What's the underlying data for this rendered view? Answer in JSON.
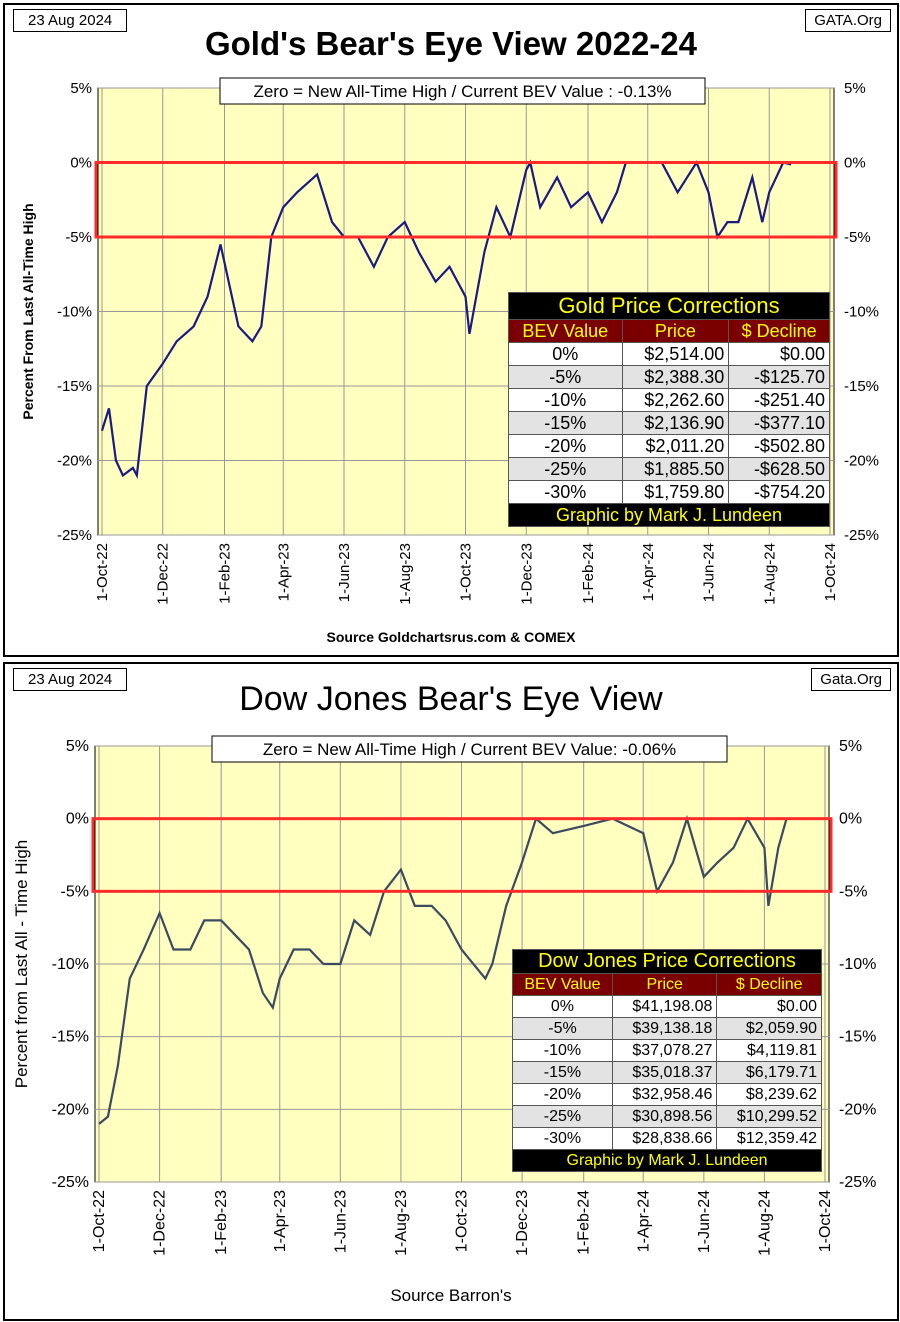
{
  "charts": [
    {
      "date": "23 Aug 2024",
      "site": "GATA.Org",
      "title": "Gold's Bear's Eye View 2022-24",
      "note": "Zero = New All-Time High / Current  BEV Value : -0.13%",
      "ylabel": "Percent  From  Last  All-Time High",
      "source": "Source Goldchartsrus.com  & COMEX",
      "table": {
        "title": "Gold Price Corrections",
        "headers": [
          "BEV Value",
          "Price",
          "$ Decline"
        ],
        "rows": [
          [
            "0%",
            "$2,514.00",
            "$0.00"
          ],
          [
            "-5%",
            "$2,388.30",
            "-$125.70"
          ],
          [
            "-10%",
            "$2,262.60",
            "-$251.40"
          ],
          [
            "-15%",
            "$2,136.90",
            "-$377.10"
          ],
          [
            "-20%",
            "$2,011.20",
            "-$502.80"
          ],
          [
            "-25%",
            "$1,885.50",
            "-$628.50"
          ],
          [
            "-30%",
            "$1,759.80",
            "-$754.20"
          ]
        ],
        "footer": "Graphic by Mark J. Lundeen"
      }
    },
    {
      "date": "23 Aug 2024",
      "site": "Gata.Org",
      "title": "Dow Jones Bear's Eye View",
      "note": "Zero = New All-Time High / Current BEV Value:  -0.06%",
      "ylabel": "Percent from Last All - Time  High",
      "source": "Source Barron's",
      "table": {
        "title": "Dow Jones Price Corrections",
        "headers": [
          "BEV Value",
          "Price",
          "$ Decline"
        ],
        "rows": [
          [
            "0%",
            "$41,198.08",
            "$0.00"
          ],
          [
            "-5%",
            "$39,138.18",
            "$2,059.90"
          ],
          [
            "-10%",
            "$37,078.27",
            "$4,119.81"
          ],
          [
            "-15%",
            "$35,018.37",
            "$6,179.71"
          ],
          [
            "-20%",
            "$32,958.46",
            "$8,239.62"
          ],
          [
            "-25%",
            "$30,898.56",
            "$10,299.52"
          ],
          [
            "-30%",
            "$28,838.66",
            "$12,359.42"
          ]
        ],
        "footer": "Graphic by Mark J. Lundeen"
      }
    }
  ],
  "chart_data": [
    {
      "type": "line",
      "title": "Gold's Bear's Eye View 2022-24",
      "ylabel": "Percent  From  Last  All-Time High",
      "ylim": [
        -25,
        5
      ],
      "yticks": [
        "5%",
        "0%",
        "-5%",
        "-10%",
        "-15%",
        "-20%",
        "-25%"
      ],
      "xticks": [
        "1-Oct-22",
        "1-Dec-22",
        "1-Feb-23",
        "1-Apr-23",
        "1-Jun-23",
        "1-Aug-23",
        "1-Oct-23",
        "1-Dec-23",
        "1-Feb-24",
        "1-Apr-24",
        "1-Jun-24",
        "1-Aug-24",
        "1-Oct-24"
      ],
      "highlight_band": [
        -5,
        0
      ],
      "line_color": "#1a1a80",
      "plot_bg": "#ffffc0",
      "x": [
        "2022-10-01",
        "2022-10-08",
        "2022-10-15",
        "2022-10-22",
        "2022-11-01",
        "2022-11-05",
        "2022-11-15",
        "2022-12-01",
        "2022-12-15",
        "2023-01-01",
        "2023-01-15",
        "2023-01-28",
        "2023-02-15",
        "2023-03-01",
        "2023-03-10",
        "2023-03-20",
        "2023-04-01",
        "2023-04-15",
        "2023-05-05",
        "2023-05-20",
        "2023-06-01",
        "2023-06-15",
        "2023-07-01",
        "2023-07-15",
        "2023-08-01",
        "2023-08-15",
        "2023-09-01",
        "2023-09-15",
        "2023-10-01",
        "2023-10-05",
        "2023-10-20",
        "2023-11-01",
        "2023-11-15",
        "2023-12-01",
        "2023-12-05",
        "2023-12-15",
        "2024-01-01",
        "2024-01-15",
        "2024-02-01",
        "2024-02-15",
        "2024-03-01",
        "2024-03-10",
        "2024-04-01",
        "2024-04-15",
        "2024-05-01",
        "2024-05-20",
        "2024-06-01",
        "2024-06-10",
        "2024-06-20",
        "2024-07-01",
        "2024-07-15",
        "2024-07-25",
        "2024-08-01",
        "2024-08-15",
        "2024-08-23"
      ],
      "y": [
        -18,
        -16.5,
        -20,
        -21,
        -20.5,
        -21,
        -15,
        -13.5,
        -12,
        -11,
        -9,
        -5.5,
        -11,
        -12,
        -11,
        -5,
        -3,
        -2,
        -0.8,
        -4,
        -5,
        -5,
        -7,
        -5,
        -4,
        -6,
        -8,
        -7,
        -9,
        -11.5,
        -6,
        -3,
        -5,
        -0.5,
        0,
        -3,
        -1,
        -3,
        -2,
        -4,
        -2,
        0,
        0,
        0,
        -2,
        0,
        -2,
        -5,
        -4,
        -4,
        -1,
        -4,
        -2,
        0,
        -0.13
      ]
    },
    {
      "type": "line",
      "title": "Dow Jones Bear's Eye View",
      "ylabel": "Percent from Last All - Time  High",
      "ylim": [
        -25,
        5
      ],
      "yticks": [
        "5%",
        "0%",
        "-5%",
        "-10%",
        "-15%",
        "-20%",
        "-25%"
      ],
      "xticks": [
        "1-Oct-22",
        "1-Dec-22",
        "1-Feb-23",
        "1-Apr-23",
        "1-Jun-23",
        "1-Aug-23",
        "1-Oct-23",
        "1-Dec-23",
        "1-Feb-24",
        "1-Apr-24",
        "1-Jun-24",
        "1-Aug-24",
        "1-Oct-24"
      ],
      "highlight_band": [
        -5,
        0
      ],
      "line_color": "#3a4a60",
      "plot_bg": "#ffffc0",
      "x": [
        "2022-10-01",
        "2022-10-10",
        "2022-10-20",
        "2022-11-01",
        "2022-11-15",
        "2022-12-01",
        "2022-12-15",
        "2023-01-01",
        "2023-01-15",
        "2023-02-01",
        "2023-02-15",
        "2023-03-01",
        "2023-03-15",
        "2023-03-25",
        "2023-04-01",
        "2023-04-15",
        "2023-05-01",
        "2023-05-15",
        "2023-06-01",
        "2023-06-15",
        "2023-07-01",
        "2023-07-15",
        "2023-08-01",
        "2023-08-15",
        "2023-09-01",
        "2023-09-15",
        "2023-10-01",
        "2023-10-25",
        "2023-11-01",
        "2023-11-15",
        "2023-12-01",
        "2023-12-15",
        "2024-01-01",
        "2024-02-01",
        "2024-03-01",
        "2024-04-01",
        "2024-04-15",
        "2024-05-01",
        "2024-05-15",
        "2024-06-01",
        "2024-06-15",
        "2024-07-01",
        "2024-07-15",
        "2024-08-01",
        "2024-08-05",
        "2024-08-15",
        "2024-08-23"
      ],
      "y": [
        -21,
        -20.5,
        -17,
        -11,
        -9,
        -6.5,
        -9,
        -9,
        -7,
        -7,
        -8,
        -9,
        -12,
        -13,
        -11,
        -9,
        -9,
        -10,
        -10,
        -7,
        -8,
        -5,
        -3.5,
        -6,
        -6,
        -7,
        -9,
        -11,
        -10,
        -6,
        -3,
        0,
        -1,
        -0.5,
        0,
        -1,
        -5,
        -3,
        0,
        -4,
        -3,
        -2,
        0,
        -2,
        -6,
        -2,
        -0.06
      ]
    }
  ]
}
